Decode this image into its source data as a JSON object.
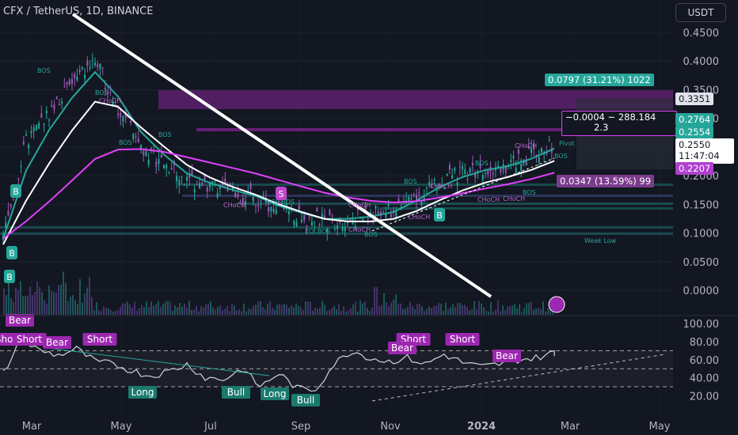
{
  "header": {
    "title": "CFX / TetherUS, 1D, BINANCE",
    "currency": "USDT"
  },
  "price_labels": {
    "p1": "0.3351",
    "p2": "0.2764",
    "p3": "0.2554",
    "last": "0.2550",
    "countdown": "11:47:04",
    "p4": "0.2207"
  },
  "measure": {
    "upper": "0.0797 (31.21%) 1022",
    "middle_line1": "−0.0004 ~ 288.184",
    "middle_line2": "2.3",
    "lower": "0.0347 (13.59%) 99"
  },
  "colors": {
    "candle_up": "#26a69a",
    "candle_down": "#9b59b6",
    "ema_fast": "#26a69a",
    "ema_slow": "#ffffff",
    "ema_long": "#e040fb",
    "zone": "#9c27b0"
  },
  "chart_data": [
    {
      "type": "line",
      "title": "CFX / TetherUS, 1D, BINANCE",
      "x_ticks": [
        "Mar",
        "May",
        "Jul",
        "Sep",
        "Nov",
        "2024",
        "Mar",
        "May"
      ],
      "y_ticks": [
        "0.4500",
        "0.4000",
        "0.3500",
        "0.3000",
        "0.2500",
        "0.2000",
        "0.1500",
        "0.1000",
        "0.0500",
        "0.0000"
      ],
      "ylim": [
        0.0,
        0.47
      ],
      "series": [
        {
          "values": [
            0.09,
            0.26,
            0.31,
            0.36,
            0.4,
            0.32,
            0.25,
            0.22,
            0.19,
            0.18,
            0.17,
            0.16,
            0.14,
            0.13,
            0.12,
            0.125,
            0.13,
            0.14,
            0.165,
            0.19,
            0.205,
            0.215,
            0.22,
            0.235,
            0.255
          ]
        }
      ],
      "structure_labels": [
        "BOS",
        "BOS",
        "CHoCH",
        "BOS",
        "BOS",
        "CHoCH",
        "EQL BOS",
        "CHoCH",
        "EQLBOS",
        "CHoCH",
        "BOS",
        "BOS",
        "CHoCH",
        "CHoCH",
        "BOS",
        "BOS",
        "CHoCH",
        "CHoCH",
        "CHoCH",
        "BOS",
        "BOS",
        "Weak Low"
      ],
      "signal_labels": [
        "B",
        "B",
        "B",
        "S",
        "B"
      ],
      "pivot_label": "Pivot"
    },
    {
      "type": "line",
      "title": "",
      "y_ticks": [
        "100.00",
        "80.00",
        "60.00",
        "40.00",
        "20.00"
      ],
      "ylim": [
        18,
        100
      ],
      "series": [
        {
          "values": [
            45,
            82,
            70,
            65,
            72,
            58,
            55,
            48,
            42,
            47,
            55,
            40,
            38,
            50,
            30,
            45,
            28,
            27,
            55,
            70,
            62,
            58,
            62,
            55,
            66,
            57,
            52,
            55,
            60,
            62,
            68
          ]
        }
      ],
      "annotations": [
        "Bear",
        "Short",
        "Short",
        "Bear",
        "Short",
        "Long",
        "Bull",
        "Long",
        "Bull",
        "Short",
        "Bear",
        "Short",
        "Bear"
      ]
    }
  ]
}
